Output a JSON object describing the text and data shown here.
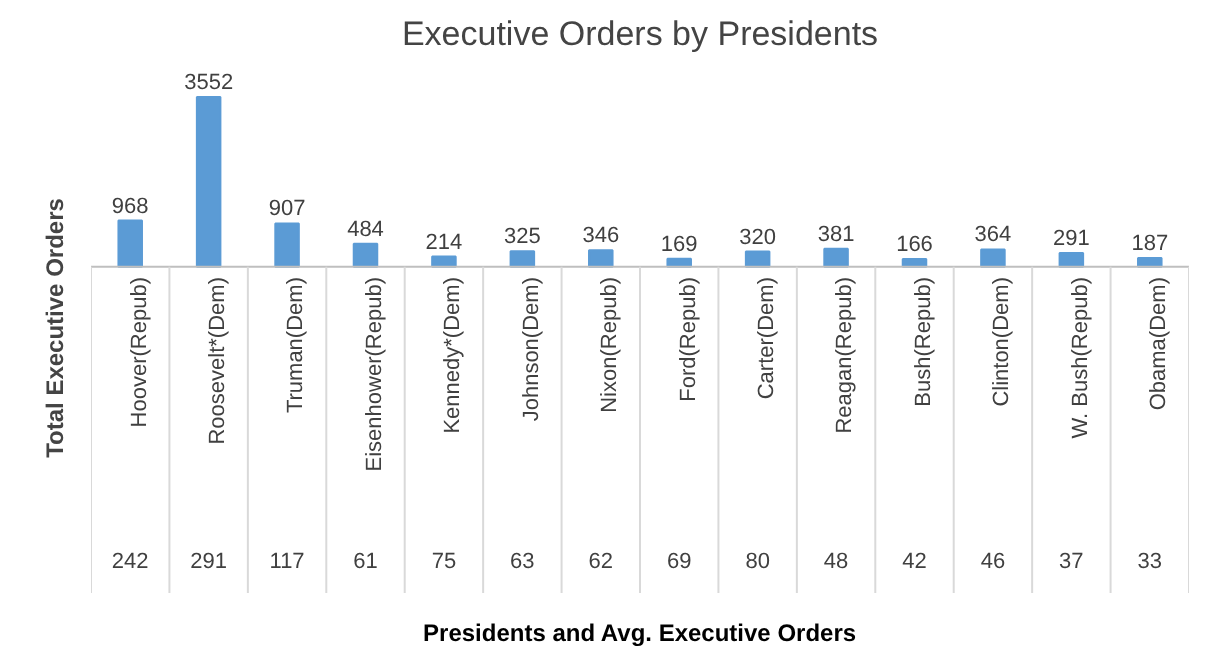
{
  "chart_data": {
    "type": "bar",
    "title": "Executive Orders by Presidents",
    "ylabel": "Total Executive Orders",
    "categories": [
      "Hoover(Repub)",
      "Roosevelt*(Dem)",
      "Truman(Dem)",
      "Eisenhower(Repub)",
      "Kennedy*(Dem)",
      "Johnson(Dem)",
      "Nixon(Repub)",
      "Ford(Repub)",
      "Carter(Dem)",
      "Reagan(Repub)",
      "Bush(Repub)",
      "Clinton(Dem)",
      "W. Bush(Repub)",
      "Obama(Dem)"
    ],
    "values": [
      968,
      3552,
      907,
      484,
      214,
      325,
      346,
      169,
      320,
      381,
      166,
      364,
      291,
      187
    ],
    "color": "#5b9bd5",
    "data_labels": true,
    "grid": false,
    "annotations": [
      "242",
      "291",
      "117",
      "61",
      "75",
      "63",
      "62",
      "69",
      "80",
      "48",
      "42",
      "46",
      "37",
      "33",
      "Presidents and Avg. Executive Orders"
    ]
  }
}
